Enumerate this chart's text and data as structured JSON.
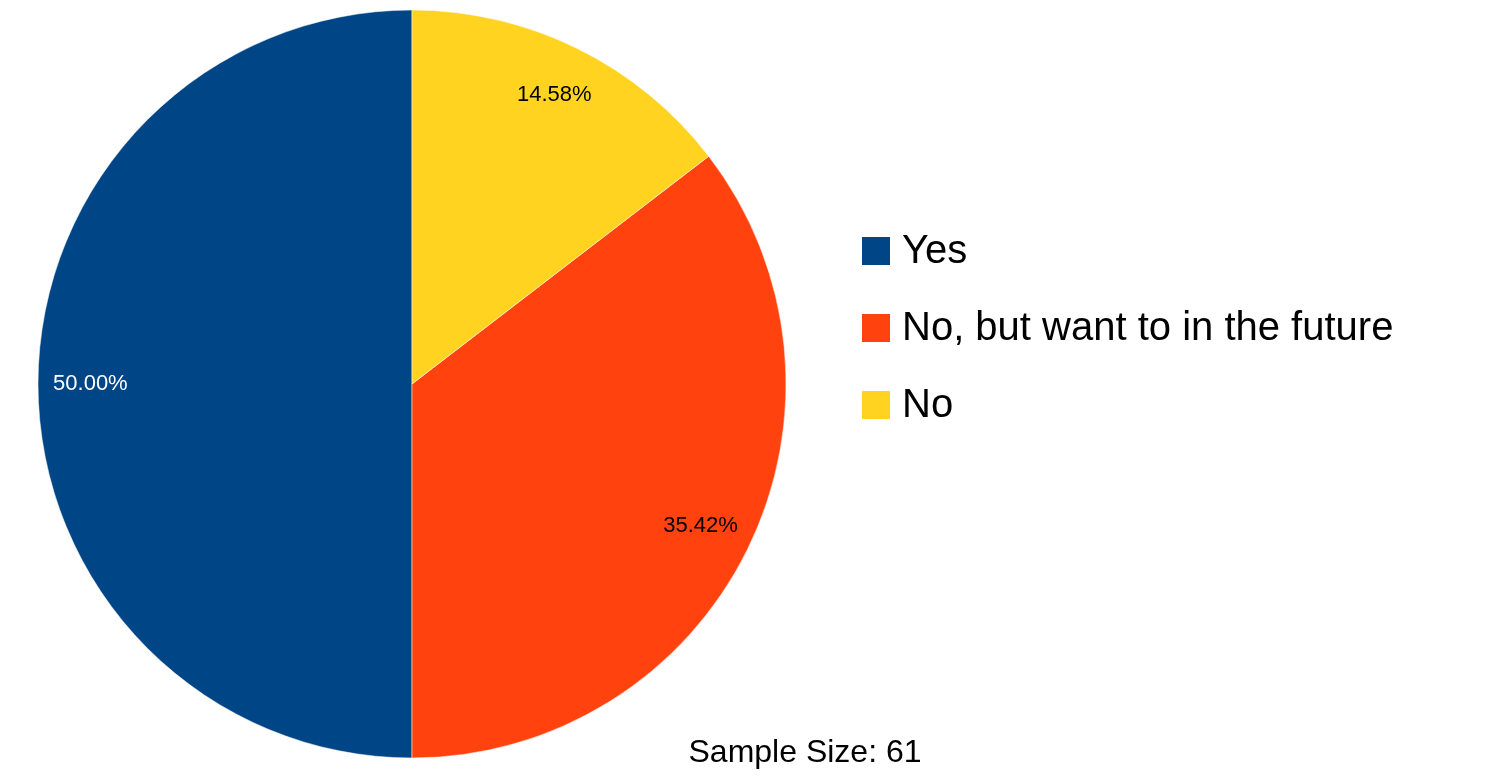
{
  "chart_data": {
    "type": "pie",
    "categories": [
      "Yes",
      "No, but want to in the future",
      "No"
    ],
    "values": [
      50,
      35.42,
      14.58
    ],
    "colors": [
      "#004586",
      "#ff420e",
      "#ffd320"
    ],
    "value_labels": [
      "50.00%",
      "35.42%",
      "14.58%"
    ],
    "legend": "right",
    "annotations": [
      "Sample Size: 61"
    ]
  }
}
